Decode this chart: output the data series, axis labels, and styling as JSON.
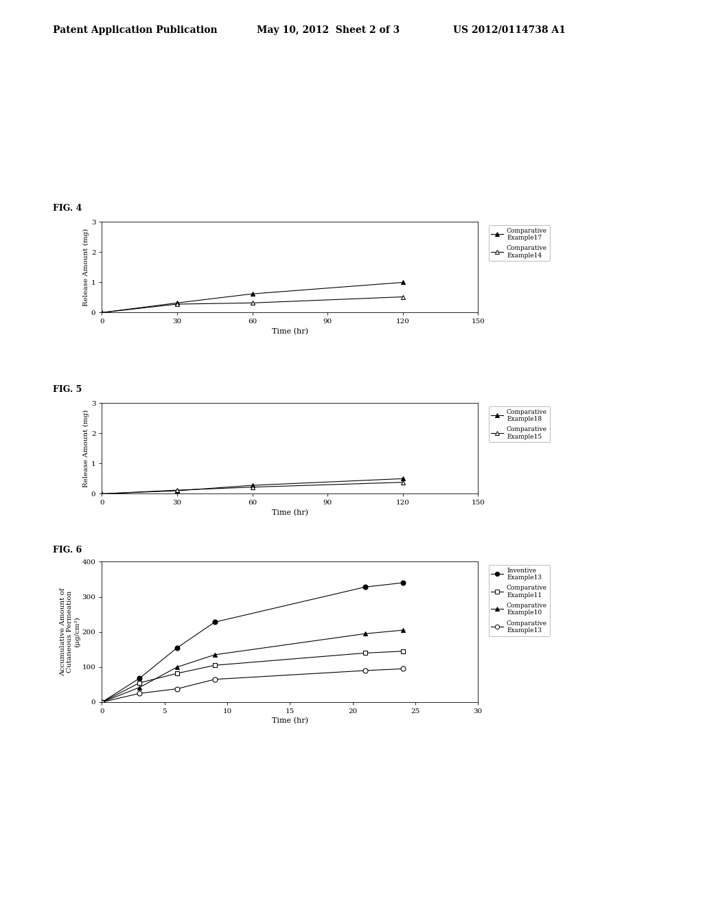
{
  "header_left": "Patent Application Publication",
  "header_mid": "May 10, 2012  Sheet 2 of 3",
  "header_right": "US 2012/0114738 A1",
  "fig4": {
    "label": "FIG. 4",
    "xlabel": "Time (hr)",
    "ylabel": "Release Amount (mg)",
    "xlim": [
      0,
      150
    ],
    "ylim": [
      0,
      3
    ],
    "xticks": [
      0,
      30,
      60,
      90,
      120,
      150
    ],
    "yticks": [
      0,
      1,
      2,
      3
    ],
    "series": [
      {
        "label": "Comparative\nExample17",
        "x": [
          0,
          30,
          60,
          120
        ],
        "y": [
          0,
          0.32,
          0.62,
          1.0
        ],
        "marker": "^",
        "filled": true,
        "color": "#000000"
      },
      {
        "label": "Comparative\nExample14",
        "x": [
          0,
          30,
          60,
          120
        ],
        "y": [
          0,
          0.28,
          0.32,
          0.52
        ],
        "marker": "^",
        "filled": false,
        "color": "#000000"
      }
    ]
  },
  "fig5": {
    "label": "FIG. 5",
    "xlabel": "Time (hr)",
    "ylabel": "Release Amount (mg)",
    "xlim": [
      0,
      150
    ],
    "ylim": [
      0,
      3
    ],
    "xticks": [
      0,
      30,
      60,
      90,
      120,
      150
    ],
    "yticks": [
      0,
      1,
      2,
      3
    ],
    "series": [
      {
        "label": "Comparative\nExample18",
        "x": [
          0,
          30,
          60,
          120
        ],
        "y": [
          0,
          0.1,
          0.28,
          0.5
        ],
        "marker": "^",
        "filled": true,
        "color": "#000000"
      },
      {
        "label": "Comparative\nExample15",
        "x": [
          0,
          30,
          60,
          120
        ],
        "y": [
          0,
          0.12,
          0.22,
          0.38
        ],
        "marker": "^",
        "filled": false,
        "color": "#000000"
      }
    ]
  },
  "fig6": {
    "label": "FIG. 6",
    "xlabel": "Time (hr)",
    "ylabel": "Accumulative Amount of\nCutaneous Permeation\n(μg/cm²)",
    "xlim": [
      0,
      30
    ],
    "ylim": [
      0,
      400
    ],
    "xticks": [
      0,
      5,
      10,
      15,
      20,
      25,
      30
    ],
    "yticks": [
      0,
      100,
      200,
      300,
      400
    ],
    "series": [
      {
        "label": "Inventive\nExample13",
        "x": [
          0,
          3,
          6,
          9,
          21,
          24
        ],
        "y": [
          0,
          68,
          155,
          228,
          328,
          340
        ],
        "marker": "o",
        "filled": true,
        "color": "#000000"
      },
      {
        "label": "Comparative\nExample11",
        "x": [
          0,
          3,
          6,
          9,
          21,
          24
        ],
        "y": [
          0,
          55,
          82,
          105,
          140,
          145
        ],
        "marker": "s",
        "filled": false,
        "color": "#000000"
      },
      {
        "label": "Comparative\nExample10",
        "x": [
          0,
          3,
          6,
          9,
          21,
          24
        ],
        "y": [
          0,
          42,
          100,
          135,
          195,
          205
        ],
        "marker": "^",
        "filled": true,
        "color": "#000000"
      },
      {
        "label": "Comparative\nExample13",
        "x": [
          0,
          3,
          6,
          9,
          21,
          24
        ],
        "y": [
          0,
          25,
          38,
          65,
          90,
          95
        ],
        "marker": "o",
        "filled": false,
        "color": "#000000"
      }
    ]
  }
}
